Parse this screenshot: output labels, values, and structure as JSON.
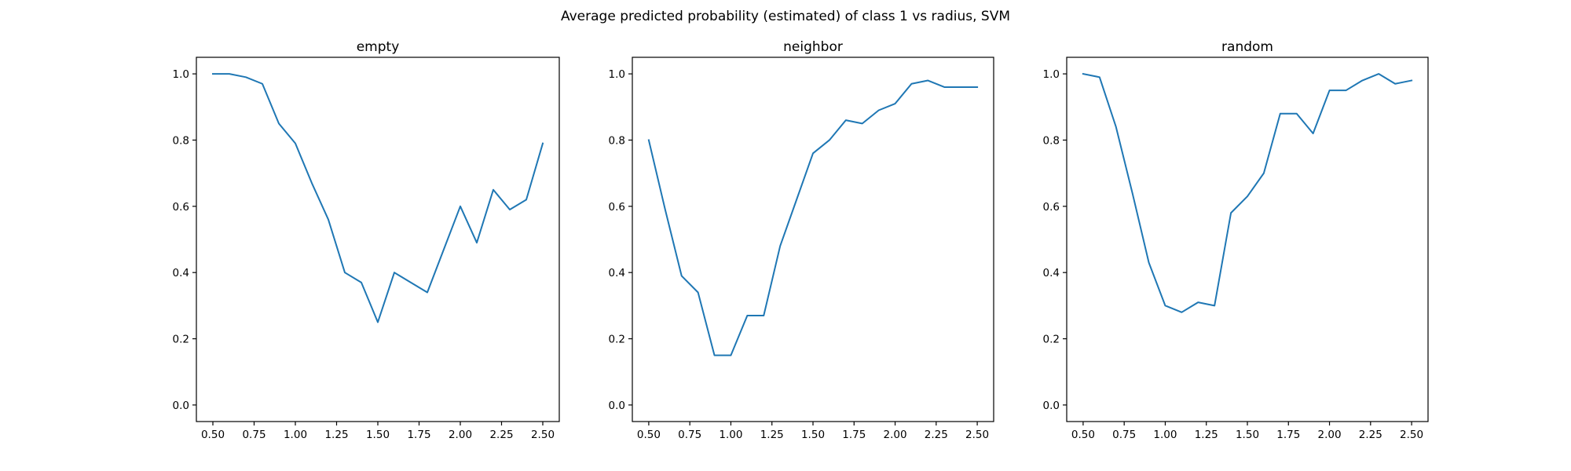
{
  "suptitle": "Average predicted probability (estimated) of class 1 vs radius, SVM",
  "colors": {
    "series": "#1f77b4",
    "axes": "#000000",
    "background": "#ffffff"
  },
  "chart_data": [
    {
      "type": "line",
      "title": "empty",
      "xlabel": "",
      "ylabel": "",
      "xlim": [
        0.4,
        2.6
      ],
      "ylim": [
        -0.05,
        1.05
      ],
      "grid": false,
      "xticks": [
        0.5,
        0.75,
        1.0,
        1.25,
        1.5,
        1.75,
        2.0,
        2.25,
        2.5
      ],
      "xtick_labels": [
        "0.50",
        "0.75",
        "1.00",
        "1.25",
        "1.50",
        "1.75",
        "2.00",
        "2.25",
        "2.50"
      ],
      "yticks": [
        0.0,
        0.2,
        0.4,
        0.6,
        0.8,
        1.0
      ],
      "ytick_labels": [
        "0.0",
        "0.2",
        "0.4",
        "0.6",
        "0.8",
        "1.0"
      ],
      "x": [
        0.5,
        0.6,
        0.7,
        0.8,
        0.9,
        1.0,
        1.1,
        1.2,
        1.3,
        1.4,
        1.5,
        1.6,
        1.7,
        1.8,
        1.9,
        2.0,
        2.1,
        2.2,
        2.3,
        2.4,
        2.5
      ],
      "y": [
        1.0,
        1.0,
        0.99,
        0.97,
        0.85,
        0.79,
        0.67,
        0.56,
        0.4,
        0.37,
        0.25,
        0.4,
        0.37,
        0.34,
        0.47,
        0.6,
        0.49,
        0.65,
        0.59,
        0.62,
        0.79
      ]
    },
    {
      "type": "line",
      "title": "neighbor",
      "xlabel": "",
      "ylabel": "",
      "xlim": [
        0.4,
        2.6
      ],
      "ylim": [
        -0.05,
        1.05
      ],
      "grid": false,
      "xticks": [
        0.5,
        0.75,
        1.0,
        1.25,
        1.5,
        1.75,
        2.0,
        2.25,
        2.5
      ],
      "xtick_labels": [
        "0.50",
        "0.75",
        "1.00",
        "1.25",
        "1.50",
        "1.75",
        "2.00",
        "2.25",
        "2.50"
      ],
      "yticks": [
        0.0,
        0.2,
        0.4,
        0.6,
        0.8,
        1.0
      ],
      "ytick_labels": [
        "0.0",
        "0.2",
        "0.4",
        "0.6",
        "0.8",
        "1.0"
      ],
      "x": [
        0.5,
        0.6,
        0.7,
        0.8,
        0.9,
        1.0,
        1.1,
        1.2,
        1.3,
        1.4,
        1.5,
        1.6,
        1.7,
        1.8,
        1.9,
        2.0,
        2.1,
        2.2,
        2.3,
        2.4,
        2.5
      ],
      "y": [
        0.8,
        0.59,
        0.39,
        0.34,
        0.15,
        0.15,
        0.27,
        0.27,
        0.48,
        0.62,
        0.76,
        0.8,
        0.86,
        0.85,
        0.89,
        0.91,
        0.97,
        0.98,
        0.96,
        0.96,
        0.96
      ]
    },
    {
      "type": "line",
      "title": "random",
      "xlabel": "",
      "ylabel": "",
      "xlim": [
        0.4,
        2.6
      ],
      "ylim": [
        -0.05,
        1.05
      ],
      "grid": false,
      "xticks": [
        0.5,
        0.75,
        1.0,
        1.25,
        1.5,
        1.75,
        2.0,
        2.25,
        2.5
      ],
      "xtick_labels": [
        "0.50",
        "0.75",
        "1.00",
        "1.25",
        "1.50",
        "1.75",
        "2.00",
        "2.25",
        "2.50"
      ],
      "yticks": [
        0.0,
        0.2,
        0.4,
        0.6,
        0.8,
        1.0
      ],
      "ytick_labels": [
        "0.0",
        "0.2",
        "0.4",
        "0.6",
        "0.8",
        "1.0"
      ],
      "x": [
        0.5,
        0.6,
        0.7,
        0.8,
        0.9,
        1.0,
        1.1,
        1.2,
        1.3,
        1.4,
        1.5,
        1.6,
        1.7,
        1.8,
        1.9,
        2.0,
        2.1,
        2.2,
        2.3,
        2.4,
        2.5
      ],
      "y": [
        1.0,
        0.99,
        0.84,
        0.64,
        0.43,
        0.3,
        0.28,
        0.31,
        0.3,
        0.58,
        0.63,
        0.7,
        0.88,
        0.88,
        0.82,
        0.95,
        0.95,
        0.98,
        1.0,
        0.97,
        0.98
      ]
    }
  ]
}
